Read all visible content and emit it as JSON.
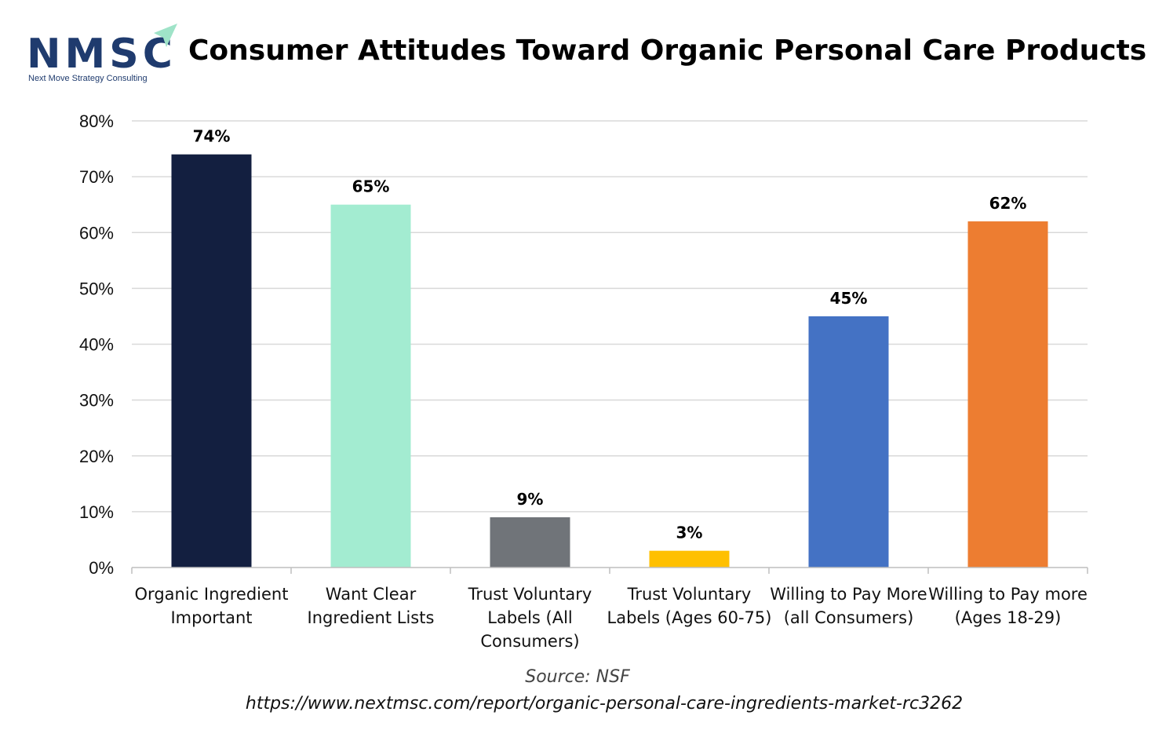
{
  "logo": {
    "wordmark": "NMSC",
    "tagline": "Next Move Strategy Consulting",
    "colors": {
      "wordmark": "#1f3b6e",
      "arrow": "#9fe3c8"
    }
  },
  "chart_data": {
    "type": "bar",
    "title": "Consumer Attitudes Toward Organic Personal Care Products",
    "categories": [
      [
        "Organic Ingredient",
        "Important"
      ],
      [
        "Want Clear",
        "Ingredient Lists"
      ],
      [
        "Trust Voluntary",
        "Labels (All",
        "Consumers)"
      ],
      [
        "Trust Voluntary",
        "Labels (Ages 60-75)"
      ],
      [
        "Willing to Pay More",
        "(all Consumers)"
      ],
      [
        "Willing to Pay more",
        "(Ages 18-29)"
      ]
    ],
    "values": [
      74,
      65,
      9,
      3,
      45,
      62
    ],
    "data_labels": [
      "74%",
      "65%",
      "9%",
      "3%",
      "45%",
      "62%"
    ],
    "colors": [
      "#131f40",
      "#a3ecd1",
      "#707479",
      "#ffc000",
      "#4472c4",
      "#ed7d31"
    ],
    "ylim": [
      0,
      80
    ],
    "yticks": [
      "0%",
      "10%",
      "20%",
      "30%",
      "40%",
      "50%",
      "60%",
      "70%",
      "80%"
    ],
    "xlabel": "",
    "ylabel": "",
    "grid": true,
    "legend": "none"
  },
  "footer": {
    "source": "Source: NSF",
    "url": "https://www.nextmsc.com/report/organic-personal-care-ingredients-market-rc3262"
  }
}
